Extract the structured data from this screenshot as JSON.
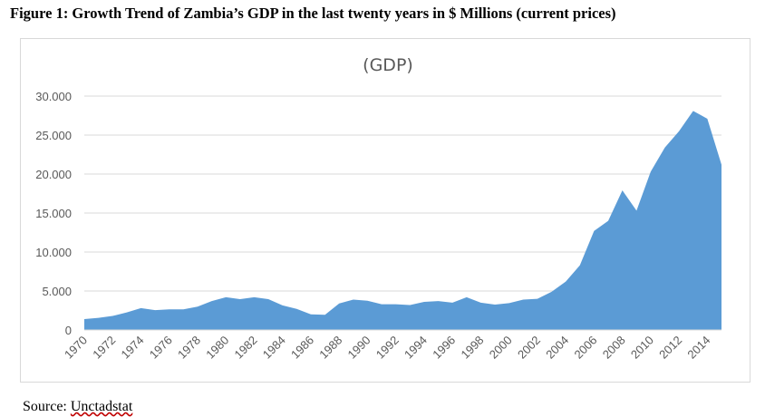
{
  "figure_title": "Figure 1: Growth Trend of Zambia’s GDP in the last twenty years in $ Millions (current prices)",
  "source": {
    "label": "Source:",
    "link_text": "Unctadstat"
  },
  "colors": {
    "area_fill": "#5b9bd5",
    "grid": "#d9d9d9",
    "text": "#595959"
  },
  "chart_data": {
    "type": "area",
    "title": "(GDP)",
    "xlabel": "",
    "ylabel": "",
    "ylim": [
      0,
      30000
    ],
    "yticks": [
      0,
      5000,
      10000,
      15000,
      20000,
      25000,
      30000
    ],
    "ytick_labels": [
      "0",
      "5.000",
      "10.000",
      "15.000",
      "20.000",
      "25.000",
      "30.000"
    ],
    "xtick_labels": [
      "1970",
      "1972",
      "1974",
      "1976",
      "1978",
      "1980",
      "1982",
      "1984",
      "1986",
      "1988",
      "1990",
      "1992",
      "1994",
      "1996",
      "1998",
      "2000",
      "2002",
      "2004",
      "2006",
      "2008",
      "2010",
      "2012",
      "2014"
    ],
    "grid": true,
    "legend": "none",
    "x": [
      1970,
      1971,
      1972,
      1973,
      1974,
      1975,
      1976,
      1977,
      1978,
      1979,
      1980,
      1981,
      1982,
      1983,
      1984,
      1985,
      1986,
      1987,
      1988,
      1989,
      1990,
      1991,
      1992,
      1993,
      1994,
      1995,
      1996,
      1997,
      1998,
      1999,
      2000,
      2001,
      2002,
      2003,
      2004,
      2005,
      2006,
      2007,
      2008,
      2009,
      2010,
      2011,
      2012,
      2013,
      2014,
      2015
    ],
    "series": [
      {
        "values": [
          1400,
          1550,
          1800,
          2250,
          2800,
          2550,
          2650,
          2650,
          3000,
          3700,
          4200,
          3950,
          4200,
          3950,
          3150,
          2700,
          2000,
          1950,
          3400,
          3900,
          3750,
          3300,
          3300,
          3200,
          3600,
          3700,
          3500,
          4200,
          3500,
          3250,
          3450,
          3900,
          4000,
          4900,
          6200,
          8300,
          12700,
          14000,
          17900,
          15300,
          20300,
          23400,
          25500,
          28100,
          27100,
          21200
        ]
      }
    ]
  }
}
